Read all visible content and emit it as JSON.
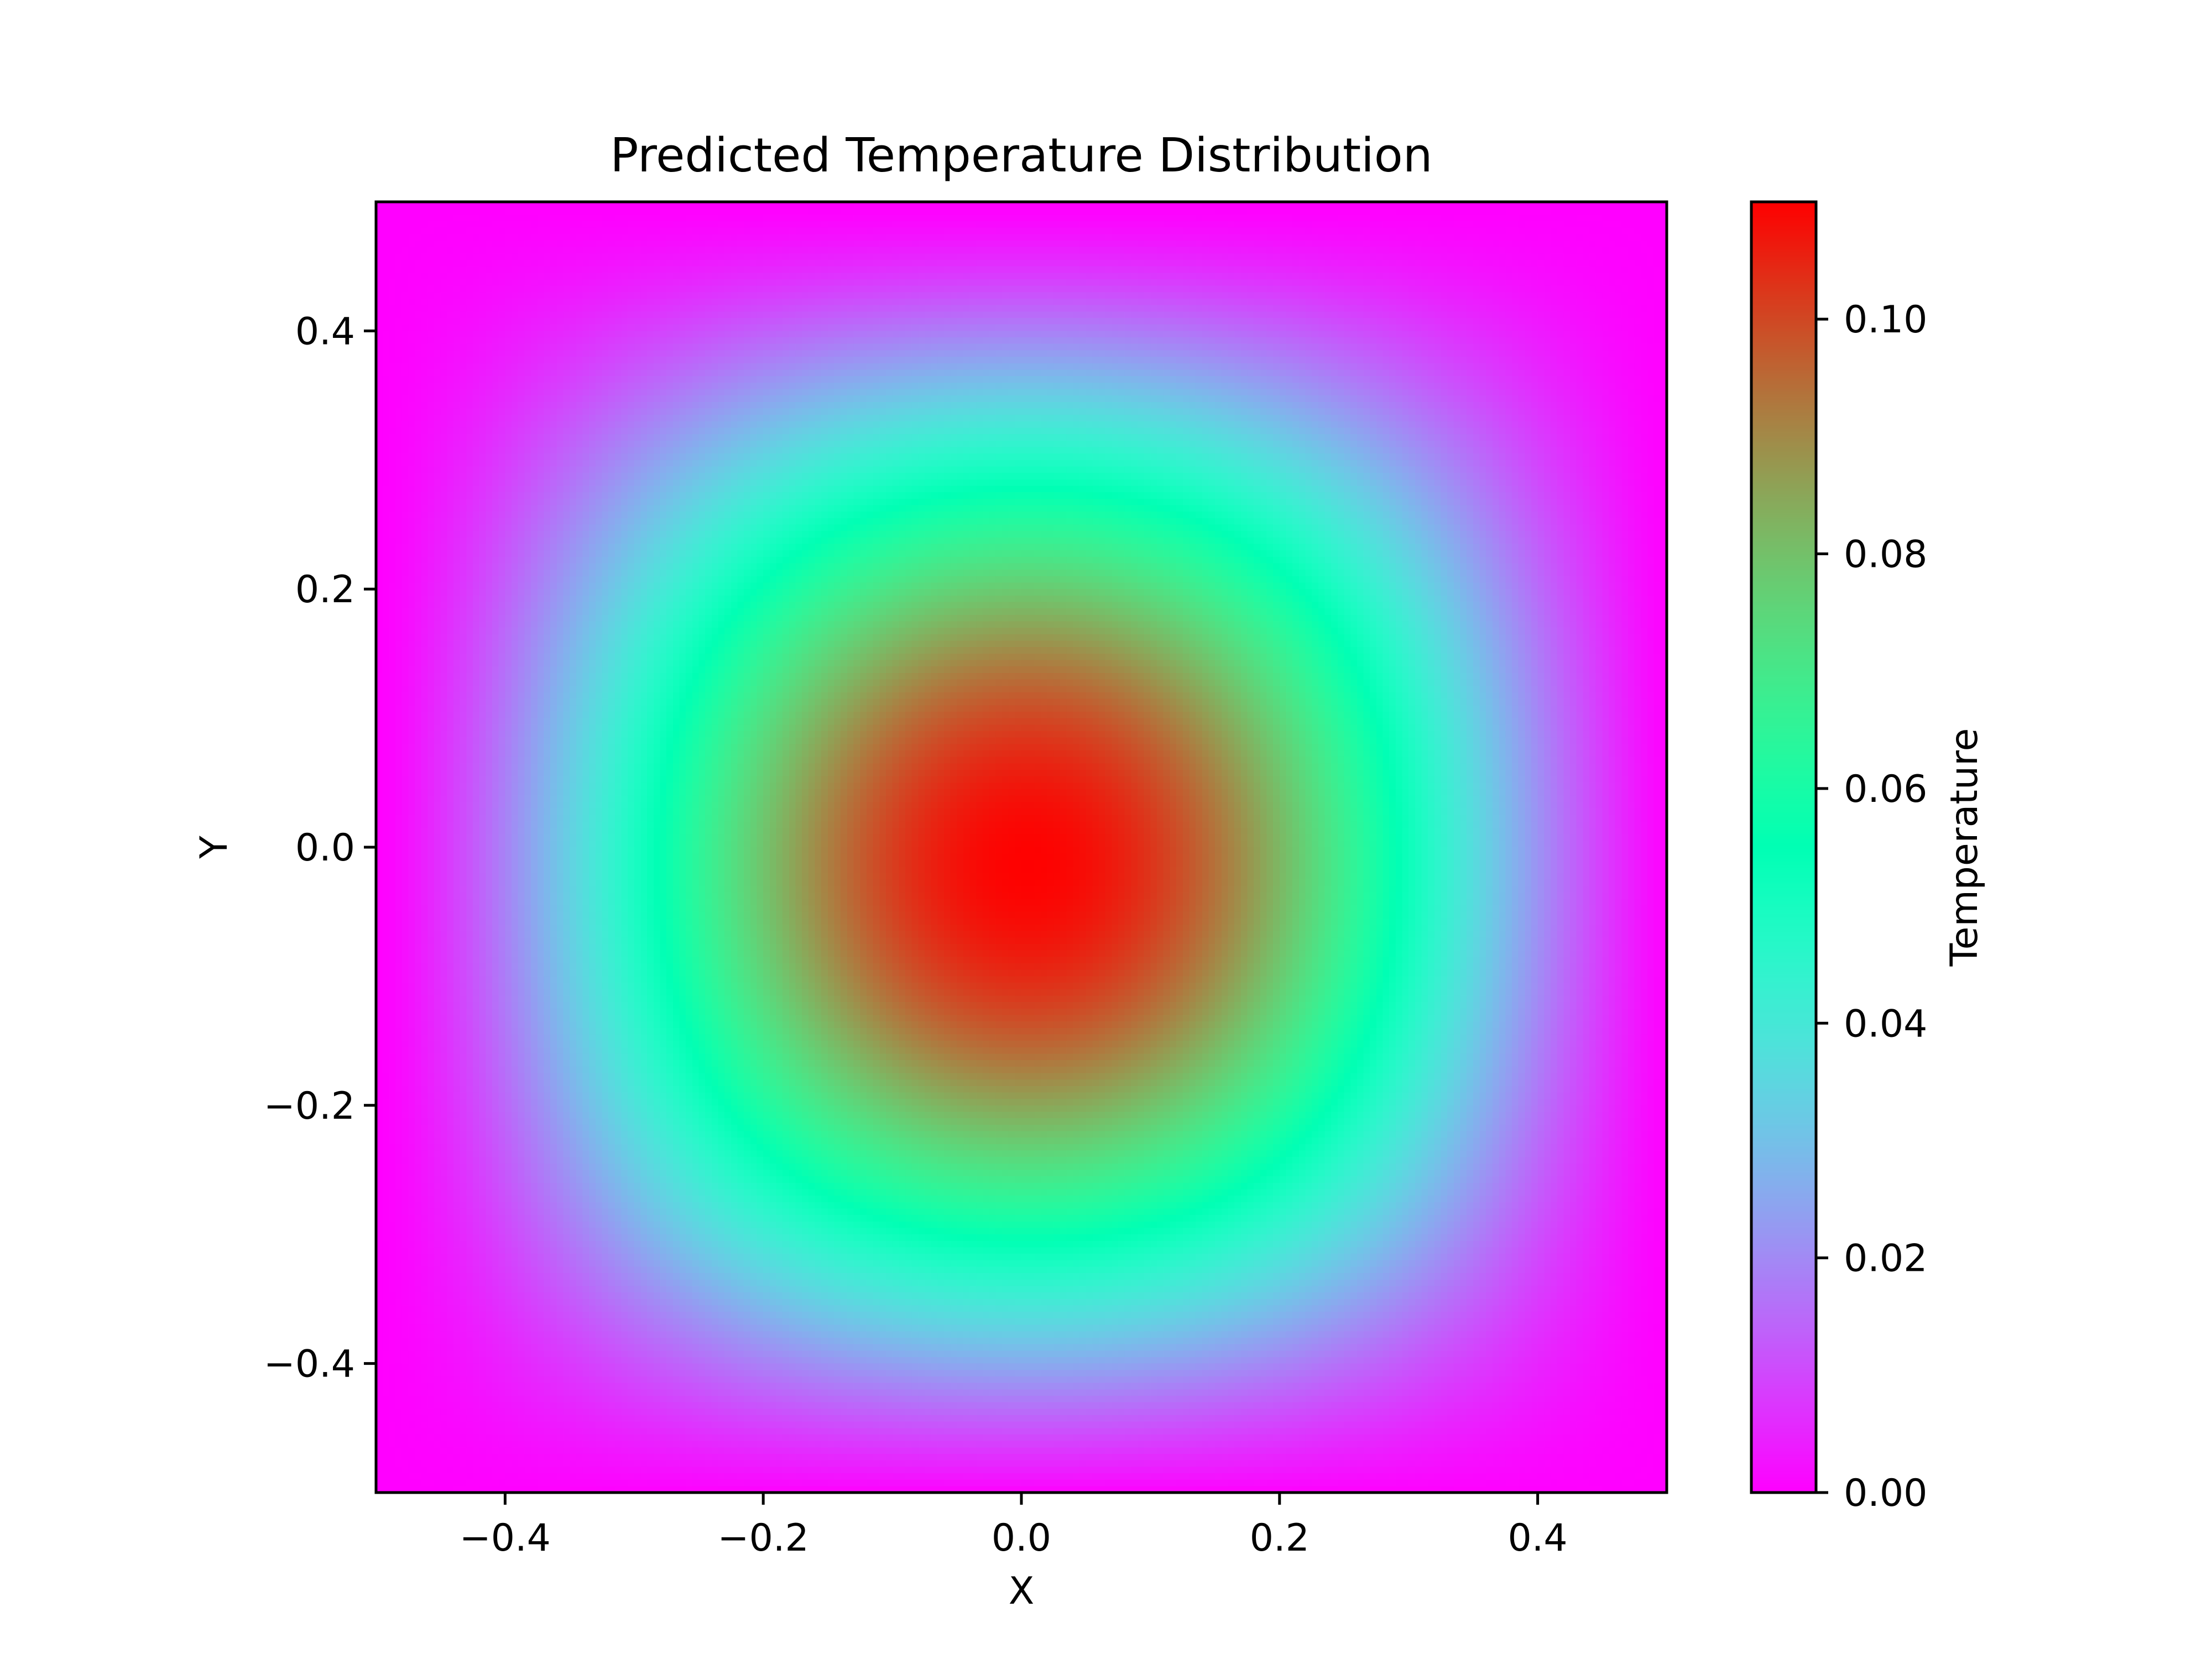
{
  "chart_data": {
    "type": "heatmap",
    "title": "Predicted Temperature Distribution",
    "xlabel": "X",
    "ylabel": "Y",
    "xlim": [
      -0.5,
      0.5
    ],
    "ylim": [
      -0.5,
      0.5
    ],
    "x_ticks": [
      {
        "value": -0.4,
        "label": "−0.4"
      },
      {
        "value": -0.2,
        "label": "−0.2"
      },
      {
        "value": 0.0,
        "label": "0.0"
      },
      {
        "value": 0.2,
        "label": "0.2"
      },
      {
        "value": 0.4,
        "label": "0.4"
      }
    ],
    "y_ticks": [
      {
        "value": -0.4,
        "label": "−0.4"
      },
      {
        "value": -0.2,
        "label": "−0.2"
      },
      {
        "value": 0.0,
        "label": "0.0"
      },
      {
        "value": 0.2,
        "label": "0.2"
      },
      {
        "value": 0.4,
        "label": "0.4"
      }
    ],
    "colorbar": {
      "label": "Temperature",
      "min": 0.0,
      "max": 0.11,
      "colormap": "rainbow",
      "ticks": [
        {
          "value": 0.0,
          "label": "0.00"
        },
        {
          "value": 0.02,
          "label": "0.02"
        },
        {
          "value": 0.04,
          "label": "0.04"
        },
        {
          "value": 0.06,
          "label": "0.06"
        },
        {
          "value": 0.08,
          "label": "0.08"
        },
        {
          "value": 0.1,
          "label": "0.10"
        }
      ]
    },
    "field": {
      "peak_value": 0.11,
      "peak_location": [
        0.01,
        -0.03
      ],
      "boundary_value": 0.0
    },
    "grid": false
  }
}
